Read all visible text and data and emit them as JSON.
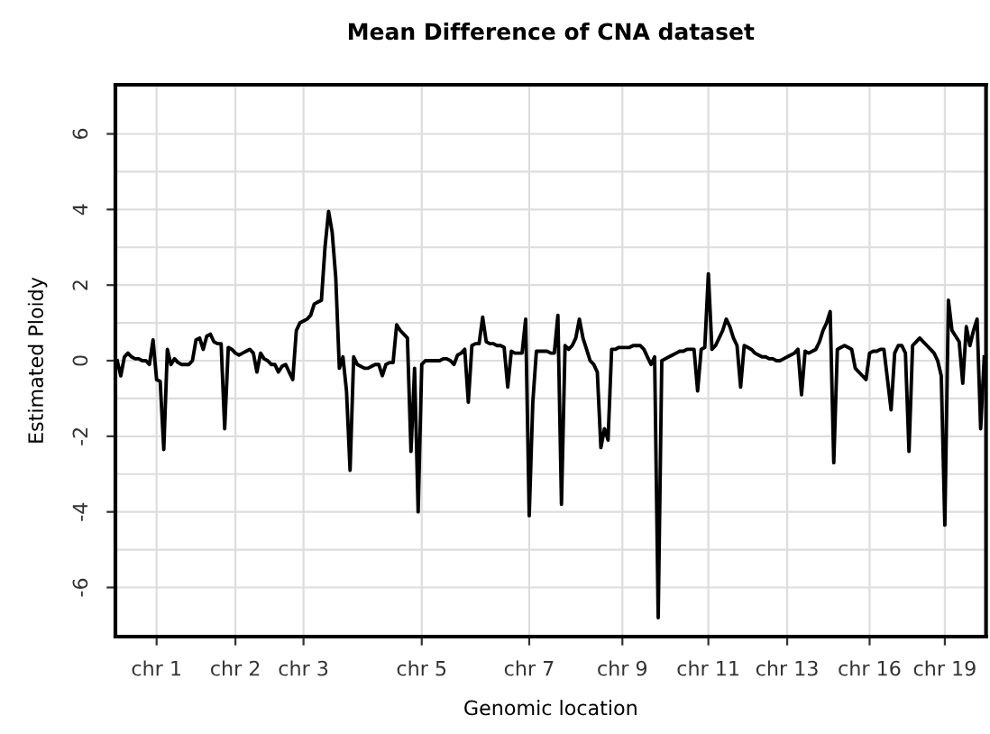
{
  "chart_data": {
    "type": "line",
    "title": "Mean Difference of CNA dataset",
    "xlabel": "Genomic location",
    "ylabel": "Estimated Ploidy",
    "ylim": [
      -7.3,
      7.3
    ],
    "yticks": [
      -6,
      {
        "value": -5,
        "label": null
      },
      -4,
      {
        "value": -3,
        "label": null
      },
      -2,
      {
        "value": -1,
        "label": null
      },
      0,
      {
        "value": 1,
        "label": null
      },
      2,
      {
        "value": 3,
        "label": null
      },
      4,
      {
        "value": 5,
        "label": null
      },
      6
    ],
    "categories": [
      null,
      null,
      null,
      null,
      null,
      null,
      null,
      null,
      null,
      null,
      null,
      "chr 1",
      null,
      null,
      null,
      null,
      null,
      null,
      null,
      null,
      null,
      null,
      null,
      null,
      null,
      null,
      null,
      null,
      null,
      null,
      null,
      null,
      null,
      "chr 2",
      null,
      null,
      null,
      null,
      null,
      null,
      null,
      null,
      null,
      null,
      null,
      null,
      null,
      null,
      null,
      null,
      null,
      null,
      "chr 3",
      null,
      null,
      null,
      null,
      null,
      null,
      null,
      null,
      null,
      null,
      null,
      null,
      null,
      null,
      null,
      null,
      null,
      null,
      null,
      null,
      null,
      null,
      null,
      null,
      null,
      null,
      null,
      null,
      null,
      null,
      null,
      null,
      "chr 5",
      null,
      null,
      null,
      null,
      null,
      null,
      null,
      null,
      null,
      null,
      null,
      null,
      null,
      null,
      null,
      null,
      null,
      null,
      null,
      null,
      null,
      null,
      null,
      null,
      null,
      null,
      null,
      null,
      null,
      "chr 7",
      null,
      null,
      null,
      null,
      null,
      null,
      null,
      null,
      null,
      null,
      null,
      null,
      null,
      null,
      null,
      null,
      null,
      null,
      null,
      null,
      null,
      null,
      null,
      null,
      null,
      "chr 9",
      null,
      null,
      null,
      null,
      null,
      null,
      null,
      null,
      null,
      null,
      null,
      null,
      null,
      null,
      null,
      null,
      null,
      null,
      null,
      null,
      null,
      null,
      null,
      "chr 11",
      null,
      null,
      null,
      null,
      null,
      null,
      null,
      null,
      null,
      null,
      null,
      null,
      null,
      null,
      null,
      null,
      null,
      null,
      null,
      null,
      null,
      "chr 13",
      null,
      null,
      null,
      null,
      null,
      null,
      null,
      null,
      null,
      null,
      null,
      null,
      null,
      null,
      null,
      null,
      null,
      null,
      null,
      null,
      null,
      null,
      "chr 16",
      null,
      null,
      null,
      null,
      null,
      null,
      null,
      null,
      null,
      null,
      null,
      null,
      null,
      null,
      null,
      null,
      null,
      null,
      null,
      null,
      "chr 19",
      null,
      null,
      null,
      null,
      null,
      null,
      null,
      null,
      null,
      null,
      null
    ],
    "grid": true,
    "legend": false,
    "marker": "none",
    "line_style": "solid",
    "series": [
      {
        "color": "#000000",
        "values": [
          0.0,
          -0.4,
          0.1,
          0.2,
          0.1,
          0.05,
          0.05,
          0.0,
          0.0,
          -0.1,
          0.55,
          -0.5,
          -0.55,
          -2.35,
          0.3,
          -0.1,
          0.05,
          -0.05,
          -0.1,
          -0.1,
          -0.1,
          0.0,
          0.55,
          0.6,
          0.3,
          0.65,
          0.7,
          0.5,
          0.45,
          0.45,
          -1.8,
          0.35,
          0.3,
          0.2,
          0.15,
          0.2,
          0.25,
          0.3,
          0.2,
          -0.3,
          0.2,
          0.05,
          0.0,
          -0.1,
          -0.1,
          -0.3,
          -0.15,
          -0.1,
          -0.3,
          -0.5,
          0.8,
          1.0,
          1.05,
          1.1,
          1.2,
          1.5,
          1.55,
          1.6,
          3.0,
          3.95,
          3.4,
          2.2,
          -0.2,
          0.1,
          -0.8,
          -2.9,
          0.1,
          -0.1,
          -0.15,
          -0.2,
          -0.2,
          -0.15,
          -0.1,
          -0.1,
          -0.4,
          -0.1,
          -0.05,
          -0.05,
          0.95,
          0.8,
          0.7,
          0.6,
          -2.4,
          -0.2,
          -4.0,
          -0.1,
          0.0,
          0.0,
          0.0,
          0.0,
          0.0,
          0.05,
          0.05,
          0.0,
          -0.1,
          0.15,
          0.2,
          0.3,
          -1.1,
          0.4,
          0.45,
          0.45,
          1.15,
          0.5,
          0.45,
          0.45,
          0.4,
          0.4,
          0.35,
          -0.7,
          0.25,
          0.2,
          0.2,
          0.2,
          1.1,
          -4.1,
          -1.1,
          0.25,
          0.25,
          0.25,
          0.25,
          0.2,
          0.2,
          1.2,
          -3.8,
          0.4,
          0.3,
          0.4,
          0.6,
          1.1,
          0.6,
          0.3,
          0.0,
          -0.1,
          -0.3,
          -2.3,
          -1.8,
          -2.1,
          0.3,
          0.3,
          0.35,
          0.35,
          0.35,
          0.35,
          0.4,
          0.4,
          0.4,
          0.3,
          0.1,
          -0.1,
          0.1,
          -6.8,
          0.0,
          0.05,
          0.1,
          0.15,
          0.2,
          0.25,
          0.25,
          0.3,
          0.3,
          0.3,
          -0.8,
          0.3,
          0.35,
          2.3,
          0.3,
          0.4,
          0.6,
          0.8,
          1.1,
          0.9,
          0.6,
          0.4,
          -0.7,
          0.4,
          0.35,
          0.3,
          0.2,
          0.15,
          0.1,
          0.1,
          0.05,
          0.05,
          0.0,
          0.0,
          0.05,
          0.1,
          0.15,
          0.2,
          0.3,
          -0.9,
          0.25,
          0.2,
          0.25,
          0.3,
          0.5,
          0.8,
          1.0,
          1.3,
          -2.7,
          0.3,
          0.35,
          0.4,
          0.35,
          0.3,
          -0.2,
          -0.3,
          -0.4,
          -0.5,
          0.2,
          0.25,
          0.25,
          0.3,
          0.3,
          -0.5,
          -1.3,
          0.2,
          0.4,
          0.4,
          0.2,
          -2.4,
          0.4,
          0.5,
          0.6,
          0.5,
          0.4,
          0.3,
          0.2,
          0.0,
          -0.4,
          -4.35,
          1.6,
          0.8,
          0.65,
          0.5,
          -0.6,
          0.9,
          0.4,
          0.8,
          1.1,
          -1.8,
          0.1
        ]
      }
    ]
  }
}
